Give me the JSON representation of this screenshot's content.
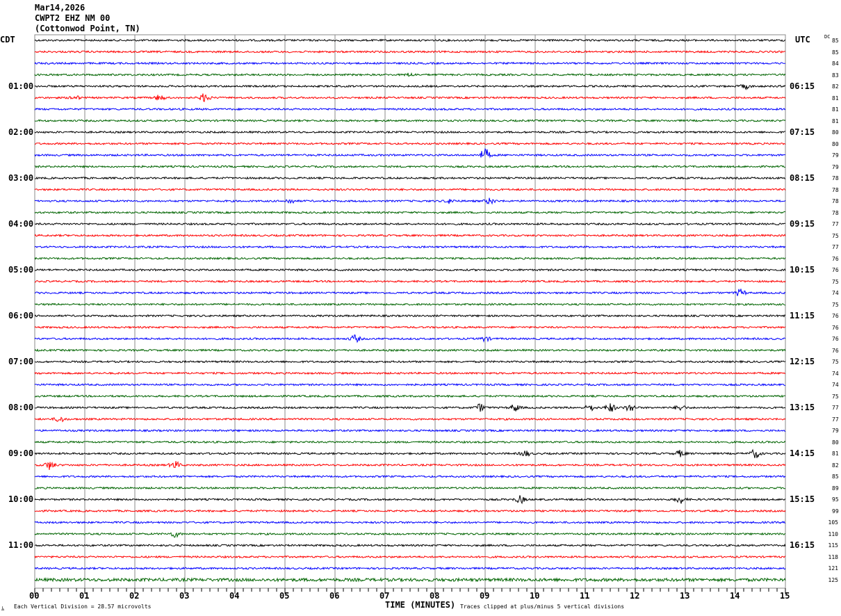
{
  "header": {
    "date": "Mar14,2026",
    "station": "CWPT2 EHZ NM 00",
    "location": "(Cottonwod Point, TN)"
  },
  "chart_data": {
    "type": "line",
    "left_timezone": "CDT",
    "right_timezone": "UTC",
    "dc_label": "DC",
    "xlabel": "TIME (MINUTES)",
    "xlim": [
      0,
      15
    ],
    "x_tick_labels": [
      "00",
      "01",
      "02",
      "03",
      "04",
      "05",
      "06",
      "07",
      "08",
      "09",
      "10",
      "11",
      "12",
      "13",
      "14",
      "15"
    ],
    "left_hour_labels": [
      "01:00",
      "02:00",
      "03:00",
      "04:00",
      "05:00",
      "06:00",
      "07:00",
      "08:00",
      "09:00",
      "10:00",
      "11:00"
    ],
    "right_hour_labels": [
      "06:15",
      "07:15",
      "08:15",
      "09:15",
      "10:15",
      "11:15",
      "12:15",
      "13:15",
      "14:15",
      "15:15",
      "16:15"
    ],
    "trace_colors": [
      "#000000",
      "#ff0000",
      "#0000ff",
      "#006400"
    ],
    "trace_minutes": 15,
    "dc_values": [
      "85",
      "85",
      "84",
      "83",
      "82",
      "81",
      "81",
      "81",
      "80",
      "80",
      "79",
      "79",
      "78",
      "78",
      "78",
      "78",
      "77",
      "75",
      "77",
      "76",
      "76",
      "75",
      "74",
      "75",
      "76",
      "76",
      "76",
      "76",
      "75",
      "74",
      "74",
      "75",
      "77",
      "77",
      "79",
      "80",
      "81",
      "82",
      "85",
      "89",
      "95",
      "99",
      "105",
      "110",
      "115",
      "118",
      "121",
      "125"
    ],
    "events": [
      [
        3,
        7.5,
        2
      ],
      [
        4,
        14.2,
        3
      ],
      [
        5,
        0.8,
        3
      ],
      [
        5,
        2.5,
        4
      ],
      [
        5,
        3.4,
        6
      ],
      [
        10,
        9.0,
        9
      ],
      [
        14,
        5.1,
        3
      ],
      [
        14,
        8.3,
        3
      ],
      [
        14,
        9.1,
        4
      ],
      [
        22,
        14.1,
        5
      ],
      [
        26,
        6.4,
        5
      ],
      [
        26,
        9.0,
        3
      ],
      [
        32,
        8.9,
        5
      ],
      [
        32,
        9.6,
        5
      ],
      [
        32,
        11.1,
        4
      ],
      [
        32,
        11.5,
        6
      ],
      [
        32,
        11.9,
        5
      ],
      [
        32,
        12.9,
        4
      ],
      [
        33,
        0.5,
        4
      ],
      [
        36,
        9.8,
        4
      ],
      [
        36,
        12.9,
        4
      ],
      [
        36,
        14.4,
        6
      ],
      [
        37,
        0.3,
        6
      ],
      [
        37,
        2.8,
        5
      ],
      [
        40,
        9.7,
        5
      ],
      [
        40,
        12.9,
        5
      ],
      [
        43,
        2.8,
        4
      ]
    ],
    "scale_note": "Each Vertical Division =   28.57 microvolts",
    "clip_note": "Traces clipped at plus/minus 5 vertical divisions"
  },
  "footer": {
    "corner_mark": "ﾑ"
  }
}
